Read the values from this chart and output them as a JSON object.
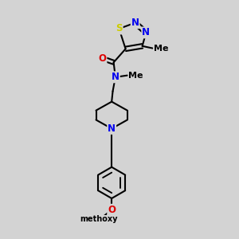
{
  "bg_color": "#d3d3d3",
  "bond_color": "#000000",
  "bond_lw": 1.5,
  "atom_colors": {
    "N": "#0000ee",
    "O": "#dd0000",
    "S": "#cccc00",
    "C": "#000000"
  },
  "figsize": [
    3.0,
    3.0
  ],
  "dpi": 100,
  "xlim": [
    -2.5,
    5.5
  ],
  "ylim": [
    -0.5,
    10.5
  ]
}
